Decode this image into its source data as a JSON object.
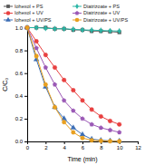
{
  "chart_data": {
    "type": "line",
    "xlabel": "Time (min)",
    "ylabel": "C/C₀",
    "x": [
      0,
      1,
      2,
      3,
      4,
      5,
      6,
      7,
      8,
      9,
      10
    ],
    "xlim": [
      0,
      12
    ],
    "ylim": [
      0.0,
      1.0
    ],
    "xticks": [
      0,
      2,
      4,
      6,
      8,
      10,
      12
    ],
    "yticks": [
      {
        "value": 0.0,
        "label": "0.0"
      },
      0.2,
      0.4,
      0.6,
      0.8,
      {
        "value": 1.0,
        "label": "1.0"
      }
    ],
    "grid": false,
    "legend": "upper right",
    "line_style": "solid",
    "series": [
      {
        "name": "Iohexol + PS",
        "color": "#555555",
        "marker": "square",
        "values": [
          1.0,
          1.0,
          1.0,
          0.99,
          0.99,
          0.98,
          0.98,
          0.97,
          0.97,
          0.965,
          0.96
        ]
      },
      {
        "name": "Iohexol + UV",
        "color": "#e84040",
        "marker": "circle",
        "values": [
          1.0,
          0.88,
          0.76,
          0.65,
          0.54,
          0.45,
          0.36,
          0.28,
          0.22,
          0.18,
          0.15
        ]
      },
      {
        "name": "Iohexol + UV/PS",
        "color": "#3a6db5",
        "marker": "triangle",
        "values": [
          1.0,
          0.72,
          0.48,
          0.3,
          0.2,
          0.12,
          0.06,
          0.02,
          0.01,
          0.005,
          0.003
        ]
      },
      {
        "name": "Diatrizoate + PS",
        "color": "#2ab5a5",
        "marker": "diamond",
        "values": [
          1.0,
          1.0,
          0.995,
          0.99,
          0.99,
          0.985,
          0.98,
          0.978,
          0.975,
          0.972,
          0.97
        ]
      },
      {
        "name": "Diatrizoate + UV",
        "color": "#9b59b6",
        "marker": "pentagon",
        "values": [
          1.0,
          0.82,
          0.65,
          0.5,
          0.36,
          0.27,
          0.2,
          0.15,
          0.12,
          0.1,
          0.08
        ]
      },
      {
        "name": "Diatrizoate + UV/PS",
        "color": "#e8a020",
        "marker": "circle",
        "values": [
          1.0,
          0.75,
          0.5,
          0.3,
          0.17,
          0.08,
          0.03,
          0.01,
          0.005,
          0.002,
          0.001
        ]
      }
    ]
  }
}
